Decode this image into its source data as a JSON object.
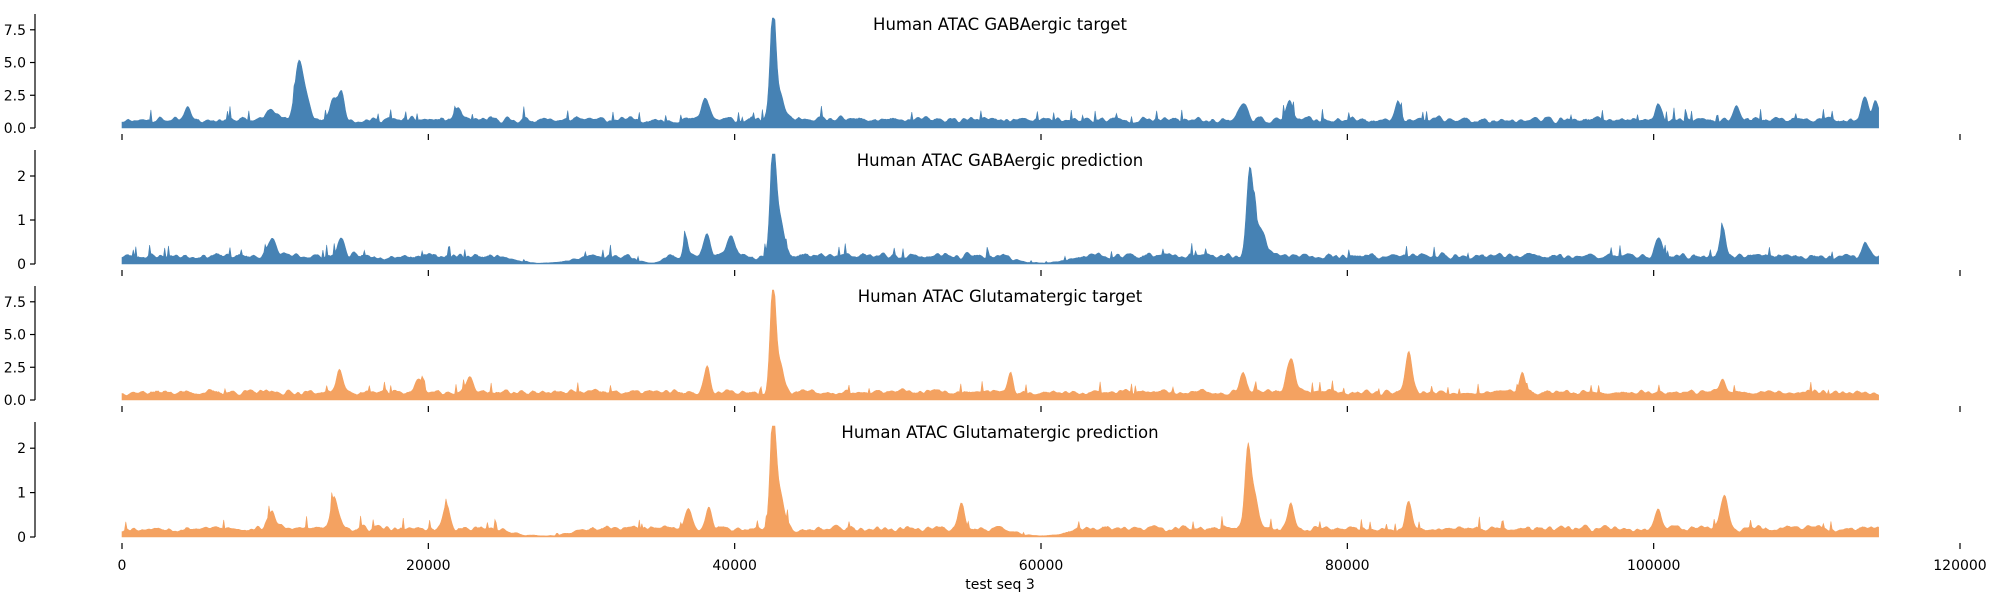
{
  "chart_data": {
    "type": "area",
    "xlabel": "test seq 3",
    "xlim": [
      0,
      120000
    ],
    "xticks": [
      0,
      20000,
      40000,
      60000,
      80000,
      100000,
      120000
    ],
    "x_extent": [
      0,
      114688
    ],
    "panels": [
      {
        "title": "Human ATAC GABAergic target",
        "color": "#4682b4",
        "ylim": [
          0,
          8.4
        ],
        "yticks": [
          0,
          2.5,
          5,
          7.5
        ],
        "ytick_labels": [
          "0.0",
          "2.5",
          "5.0",
          "7.5"
        ],
        "baseline": 0.55,
        "noise": 0.55,
        "seed": 11,
        "peaks": [
          [
            11500,
            3.6,
            250
          ],
          [
            11900,
            2.0,
            300
          ],
          [
            14300,
            2.2,
            200
          ],
          [
            13800,
            1.6,
            200
          ],
          [
            42500,
            8.1,
            180
          ],
          [
            42900,
            2.0,
            300
          ],
          [
            38100,
            1.6,
            250
          ],
          [
            73200,
            1.2,
            300
          ],
          [
            76200,
            1.4,
            200
          ],
          [
            83300,
            1.4,
            200
          ],
          [
            100300,
            1.2,
            200
          ],
          [
            105400,
            1.1,
            200
          ],
          [
            113800,
            1.8,
            200
          ],
          [
            114500,
            1.5,
            200
          ],
          [
            4300,
            1.1,
            200
          ],
          [
            9800,
            1.0,
            300
          ],
          [
            21900,
            0.9,
            200
          ]
        ]
      },
      {
        "title": "Human ATAC GABAergic prediction",
        "color": "#4682b4",
        "ylim": [
          0,
          2.5
        ],
        "yticks": [
          0,
          1,
          2
        ],
        "ytick_labels": [
          "0",
          "1",
          "2"
        ],
        "baseline": 0.16,
        "noise": 0.16,
        "seed": 23,
        "dips": [
          [
            27500,
            3000
          ],
          [
            60000,
            2500
          ],
          [
            34500,
            1200
          ]
        ],
        "peaks": [
          [
            42500,
            2.35,
            180
          ],
          [
            42900,
            0.9,
            300
          ],
          [
            39800,
            0.45,
            250
          ],
          [
            38200,
            0.5,
            200
          ],
          [
            73600,
            1.6,
            180
          ],
          [
            73900,
            0.9,
            250
          ],
          [
            74500,
            0.5,
            250
          ],
          [
            104500,
            0.6,
            180
          ],
          [
            100300,
            0.45,
            200
          ],
          [
            9800,
            0.4,
            250
          ],
          [
            14300,
            0.45,
            200
          ],
          [
            36800,
            0.5,
            150
          ],
          [
            113800,
            0.35,
            200
          ]
        ]
      },
      {
        "title": "Human ATAC Glutamatergic target",
        "color": "#f4a261",
        "ylim": [
          0,
          8.4
        ],
        "yticks": [
          0,
          2.5,
          5,
          7.5
        ],
        "ytick_labels": [
          "0.0",
          "2.5",
          "5.0",
          "7.5"
        ],
        "baseline": 0.55,
        "noise": 0.5,
        "seed": 37,
        "peaks": [
          [
            42500,
            7.7,
            180
          ],
          [
            42900,
            2.3,
            300
          ],
          [
            38200,
            2.0,
            200
          ],
          [
            14200,
            1.8,
            200
          ],
          [
            58000,
            1.4,
            150
          ],
          [
            73200,
            1.6,
            200
          ],
          [
            76300,
            2.6,
            250
          ],
          [
            84000,
            3.2,
            220
          ],
          [
            91400,
            1.5,
            180
          ],
          [
            104500,
            1.1,
            200
          ],
          [
            19400,
            1.0,
            250
          ],
          [
            22700,
            1.0,
            250
          ]
        ]
      },
      {
        "title": "Human ATAC Glutamatergic prediction",
        "color": "#f4a261",
        "ylim": [
          0,
          2.5
        ],
        "yticks": [
          0,
          1,
          2
        ],
        "ytick_labels": [
          "0",
          "1",
          "2"
        ],
        "baseline": 0.18,
        "noise": 0.16,
        "seed": 53,
        "dips": [
          [
            27500,
            3000
          ],
          [
            60000,
            2500
          ]
        ],
        "peaks": [
          [
            42500,
            2.35,
            180
          ],
          [
            42900,
            0.9,
            300
          ],
          [
            73500,
            1.7,
            180
          ],
          [
            73900,
            0.8,
            250
          ],
          [
            13900,
            0.7,
            250
          ],
          [
            21200,
            0.55,
            200
          ],
          [
            54800,
            0.6,
            200
          ],
          [
            76300,
            0.55,
            200
          ],
          [
            84000,
            0.6,
            200
          ],
          [
            104600,
            0.75,
            250
          ],
          [
            100300,
            0.5,
            200
          ],
          [
            37000,
            0.5,
            200
          ],
          [
            38300,
            0.45,
            200
          ],
          [
            9800,
            0.4,
            250
          ]
        ]
      }
    ]
  }
}
